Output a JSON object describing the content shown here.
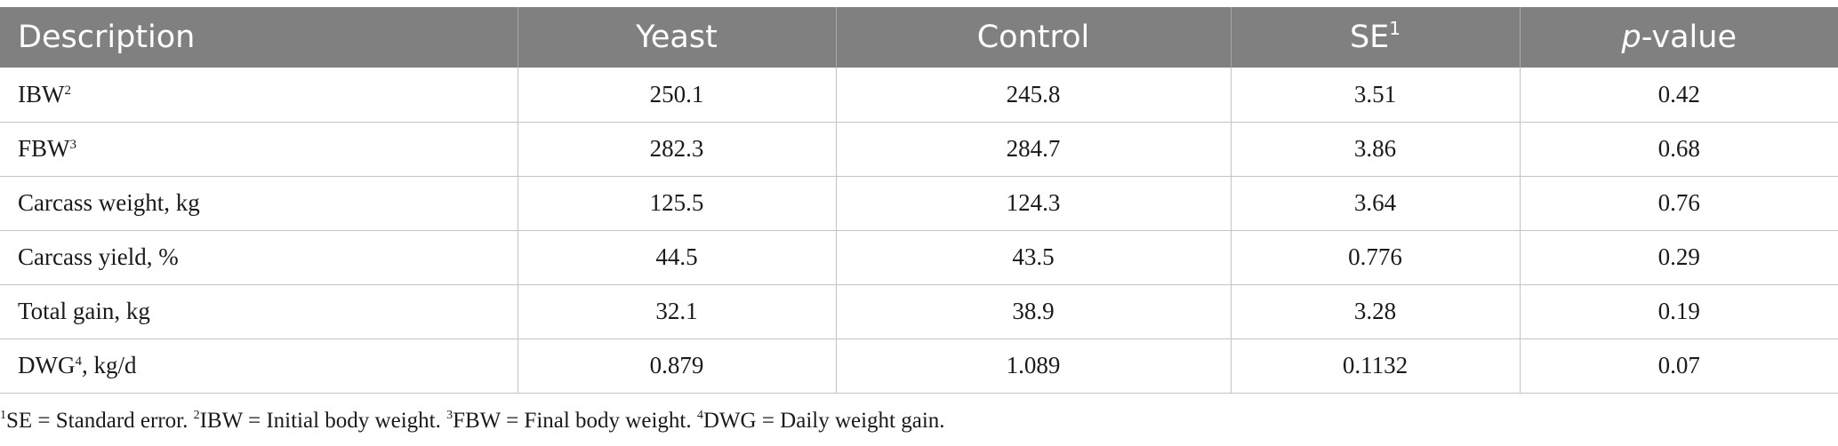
{
  "table": {
    "headers": {
      "description": "Description",
      "yeast": "Yeast",
      "control": "Control",
      "se": "SE",
      "se_sup": "1",
      "p_italic": "p",
      "p_rest": "-value"
    },
    "rows": [
      {
        "label": "IBW",
        "sup": "2",
        "suffix": "",
        "yeast": "250.1",
        "control": "245.8",
        "se": "3.51",
        "p": "0.42"
      },
      {
        "label": "FBW",
        "sup": "3",
        "suffix": "",
        "yeast": "282.3",
        "control": "284.7",
        "se": "3.86",
        "p": "0.68"
      },
      {
        "label": "Carcass weight, kg",
        "sup": "",
        "suffix": "",
        "yeast": "125.5",
        "control": "124.3",
        "se": "3.64",
        "p": "0.76"
      },
      {
        "label": "Carcass yield, %",
        "sup": "",
        "suffix": "",
        "yeast": "44.5",
        "control": "43.5",
        "se": "0.776",
        "p": "0.29"
      },
      {
        "label": "Total gain, kg",
        "sup": "",
        "suffix": "",
        "yeast": "32.1",
        "control": "38.9",
        "se": "3.28",
        "p": "0.19"
      },
      {
        "label": "DWG",
        "sup": "4",
        "suffix": ", kg/d",
        "yeast": "0.879",
        "control": "1.089",
        "se": "0.1132",
        "p": "0.07"
      }
    ]
  },
  "footnotes": [
    {
      "sup": "1",
      "text": "SE = Standard error. "
    },
    {
      "sup": "2",
      "text": "IBW = Initial body weight. "
    },
    {
      "sup": "3",
      "text": "FBW = Final body weight. "
    },
    {
      "sup": "4",
      "text": "DWG = Daily weight gain."
    }
  ]
}
